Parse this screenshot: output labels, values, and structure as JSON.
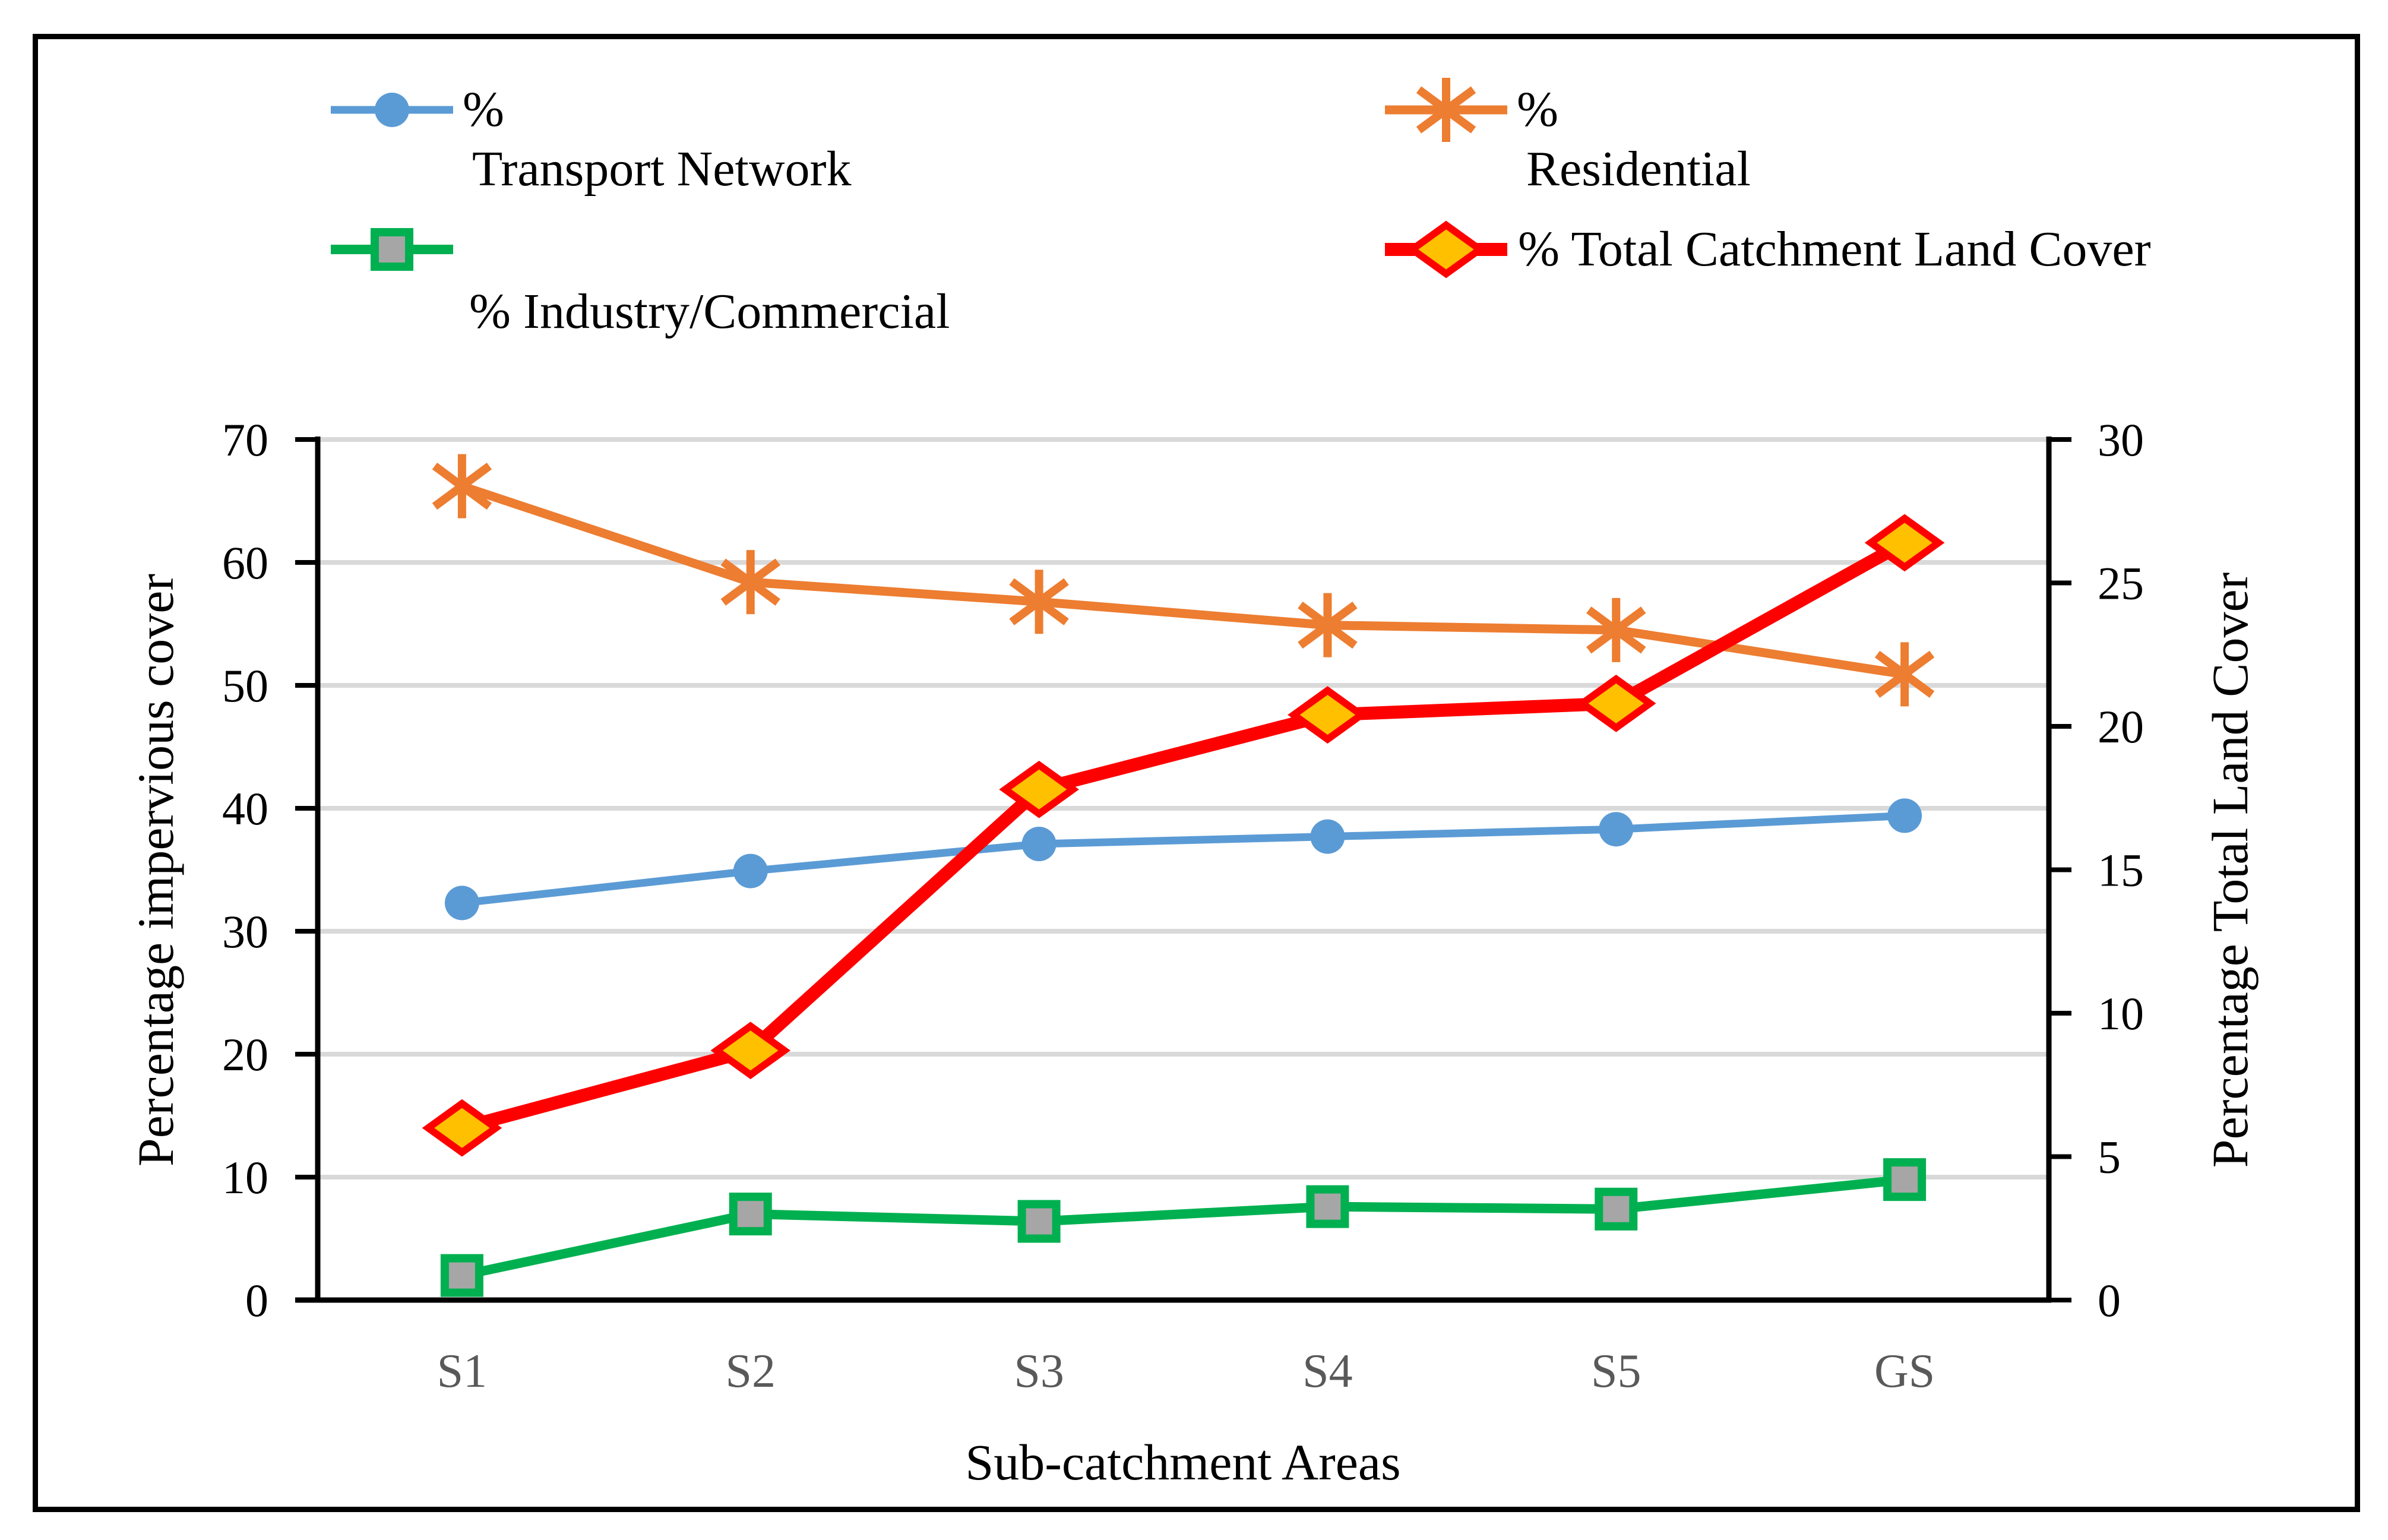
{
  "figure": {
    "x_axis_title": "Sub-catchment Areas",
    "y_left_title": "Percentage impervious cover",
    "y_right_title": "Percentage Total Land Cover"
  },
  "legend": {
    "position": "top",
    "items": [
      {
        "id": "transport",
        "percent_prefix": "%",
        "label": "Transport Network",
        "full_label": "% Transport Network",
        "color": "#5B9BD5",
        "marker": "circle"
      },
      {
        "id": "residential",
        "percent_prefix": "%",
        "label": "Residential",
        "full_label": "% Residential",
        "color": "#ED7D31",
        "marker": "asterisk"
      },
      {
        "id": "industry",
        "label": "% Industry/Commercial",
        "color": "#00B050",
        "marker": "square"
      },
      {
        "id": "total",
        "label": "% Total Catchment Land Cover",
        "color": "#FF0000",
        "marker": "diamond"
      }
    ]
  },
  "chart_data": {
    "type": "line",
    "categories": [
      "S1",
      "S2",
      "S3",
      "S4",
      "S5",
      "GS"
    ],
    "series": [
      {
        "name": "% Residential",
        "axis": "left",
        "color": "#ED7D31",
        "marker": "asterisk",
        "line_width": 15,
        "values": [
          66.2,
          58.4,
          56.8,
          54.9,
          54.5,
          50.9
        ]
      },
      {
        "name": "% Transport Network",
        "axis": "left",
        "color": "#5B9BD5",
        "marker": "circle",
        "line_width": 13,
        "values": [
          32.3,
          34.9,
          37.1,
          37.7,
          38.3,
          39.4
        ]
      },
      {
        "name": "% Industry/Commercial",
        "axis": "left",
        "color": "#00B050",
        "marker": "square",
        "marker_fill": "#A6A6A6",
        "line_width": 16,
        "values": [
          2.0,
          7.0,
          6.4,
          7.6,
          7.4,
          9.8
        ]
      },
      {
        "name": "% Total Catchment Land Cover",
        "axis": "right",
        "color": "#FF0000",
        "marker": "diamond",
        "marker_fill": "#FFC000",
        "line_width": 22,
        "values": [
          6.0,
          8.7,
          17.8,
          20.4,
          20.8,
          26.4
        ]
      }
    ],
    "left_axis": {
      "label": "Percentage impervious cover",
      "min": 0,
      "max": 70,
      "step": 10,
      "ticks": [
        0,
        10,
        20,
        30,
        40,
        50,
        60,
        70
      ]
    },
    "right_axis": {
      "label": "Percentage Total Land Cover",
      "min": 0,
      "max": 30,
      "step": 5,
      "ticks": [
        0,
        5,
        10,
        15,
        20,
        25,
        30
      ]
    },
    "x_axis": {
      "label": "Sub-catchment Areas"
    },
    "grid": true,
    "gridline_color": "#D9D9D9",
    "axis_color": "#000000",
    "x_tick_label_color": "#595959",
    "y_tick_label_color": "#000000"
  }
}
